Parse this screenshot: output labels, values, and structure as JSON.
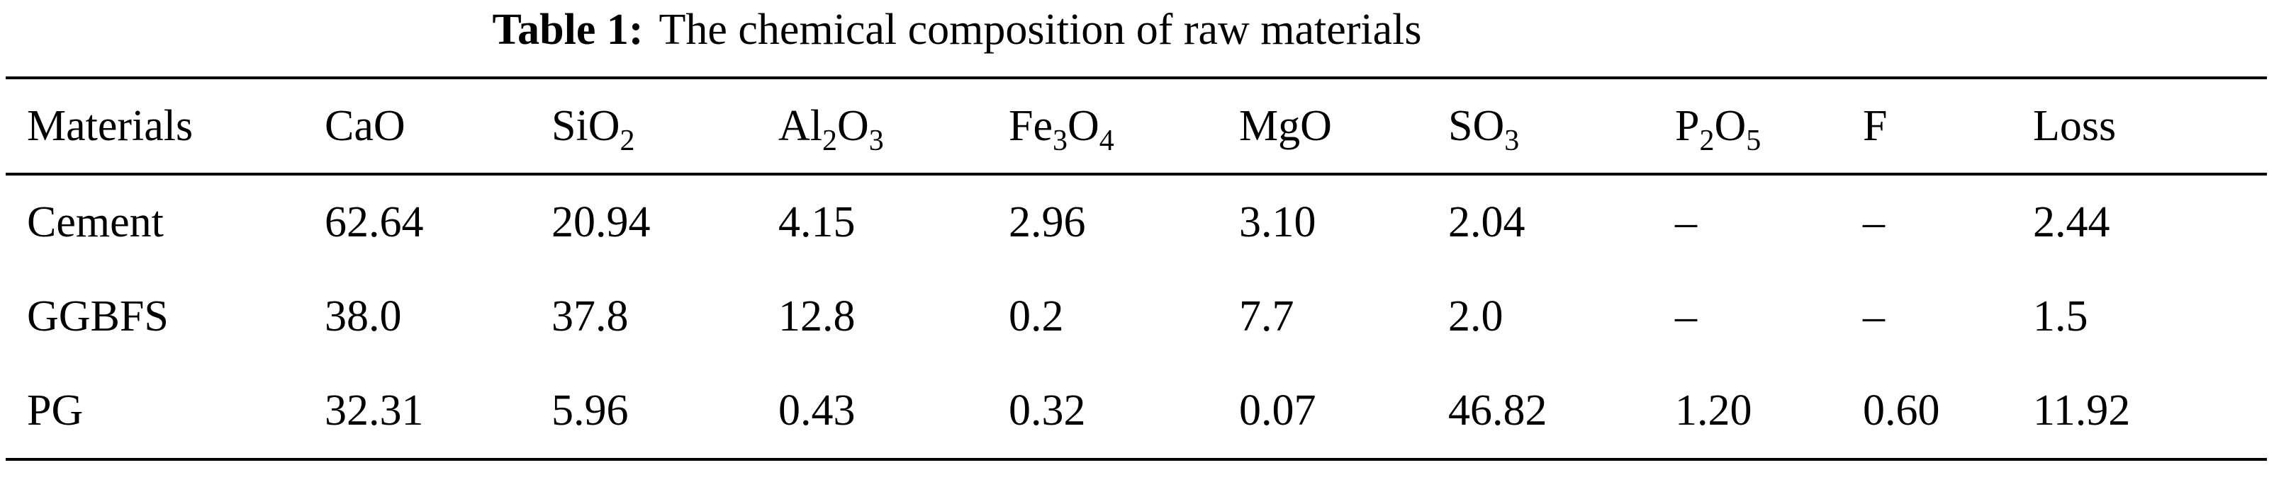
{
  "title": {
    "label": "Table 1:",
    "caption": "The chemical composition of raw materials"
  },
  "table": {
    "headers": [
      {
        "segments": [
          {
            "text": "Materials"
          }
        ]
      },
      {
        "segments": [
          {
            "text": "CaO"
          }
        ]
      },
      {
        "segments": [
          {
            "text": "SiO"
          },
          {
            "text": "2",
            "sub": true
          }
        ]
      },
      {
        "segments": [
          {
            "text": "Al"
          },
          {
            "text": "2",
            "sub": true
          },
          {
            "text": "O"
          },
          {
            "text": "3",
            "sub": true
          }
        ]
      },
      {
        "segments": [
          {
            "text": "Fe"
          },
          {
            "text": "3",
            "sub": true
          },
          {
            "text": "O"
          },
          {
            "text": "4",
            "sub": true
          }
        ]
      },
      {
        "segments": [
          {
            "text": "MgO"
          }
        ]
      },
      {
        "segments": [
          {
            "text": "SO"
          },
          {
            "text": "3",
            "sub": true
          }
        ]
      },
      {
        "segments": [
          {
            "text": "P"
          },
          {
            "text": "2",
            "sub": true
          },
          {
            "text": "O"
          },
          {
            "text": "5",
            "sub": true
          }
        ]
      },
      {
        "segments": [
          {
            "text": "F"
          }
        ]
      },
      {
        "segments": [
          {
            "text": "Loss"
          }
        ]
      }
    ],
    "rows": [
      {
        "material": "Cement",
        "values": [
          "62.64",
          "20.94",
          "4.15",
          "2.96",
          "3.10",
          "2.04",
          "–",
          "–",
          "2.44"
        ]
      },
      {
        "material": "GGBFS",
        "values": [
          "38.0",
          "37.8",
          "12.8",
          "0.2",
          "7.7",
          "2.0",
          "–",
          "–",
          "1.5"
        ]
      },
      {
        "material": "PG",
        "values": [
          "32.31",
          "5.96",
          "0.43",
          "0.32",
          "0.07",
          "46.82",
          "1.20",
          "0.60",
          "11.92"
        ]
      }
    ]
  }
}
